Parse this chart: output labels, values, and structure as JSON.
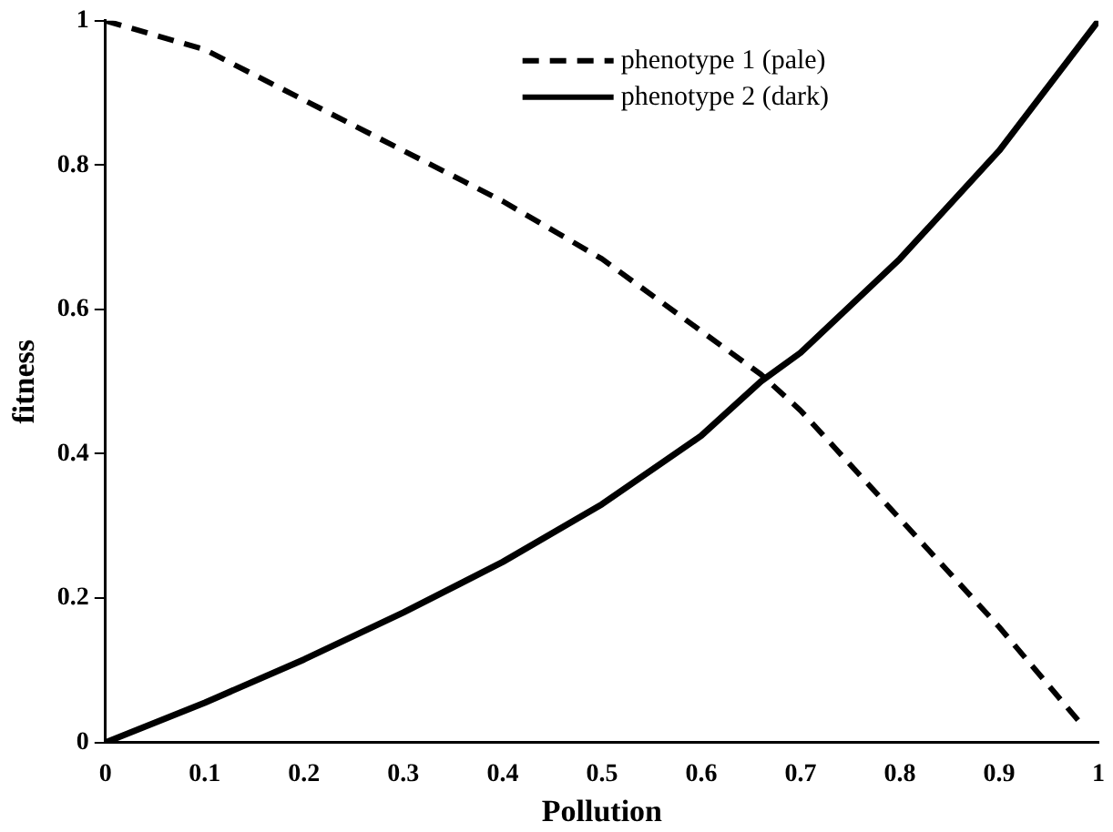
{
  "chart_data": {
    "type": "line",
    "xlabel": "Pollution",
    "ylabel": "fitness",
    "xlim": [
      0,
      1
    ],
    "xticks": [
      0,
      0.1,
      0.2,
      0.3,
      0.4,
      0.5,
      0.6,
      0.7,
      0.8,
      0.9,
      1
    ],
    "ylim": [
      0,
      1
    ],
    "yticks": [
      0,
      0.2,
      0.4,
      0.6,
      0.8,
      1
    ],
    "grid": false,
    "legend": "top",
    "marker": "none",
    "series": [
      {
        "name": "phenotype 1 (pale)",
        "color": "#000000",
        "line_style": "dashed",
        "x": [
          0,
          0.1,
          0.2,
          0.3,
          0.4,
          0.5,
          0.6,
          0.66,
          0.7,
          0.8,
          0.9,
          0.98
        ],
        "values": [
          1,
          0.96,
          0.89,
          0.82,
          0.75,
          0.67,
          0.57,
          0.51,
          0.46,
          0.31,
          0.16,
          0.03
        ]
      },
      {
        "name": "phenotype 2 (dark)",
        "color": "#000000",
        "line_style": "solid",
        "x": [
          0,
          0.1,
          0.2,
          0.3,
          0.4,
          0.5,
          0.6,
          0.66,
          0.7,
          0.8,
          0.9,
          1
        ],
        "values": [
          0,
          0.055,
          0.115,
          0.18,
          0.25,
          0.33,
          0.425,
          0.5,
          0.54,
          0.67,
          0.82,
          1
        ]
      }
    ]
  }
}
